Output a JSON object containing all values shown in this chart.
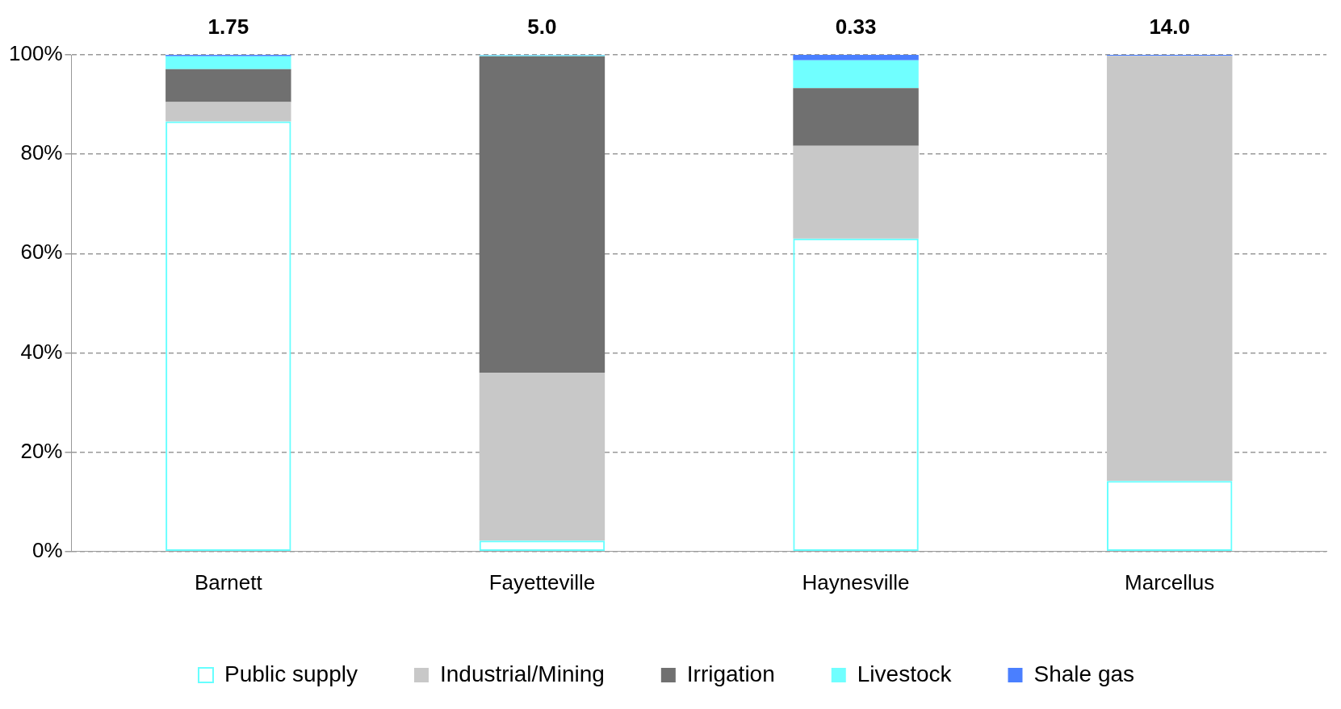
{
  "chart_data": {
    "type": "bar",
    "stacked": true,
    "categories": [
      "Barnett",
      "Fayetteville",
      "Haynesville",
      "Marcellus"
    ],
    "series": [
      {
        "name": "Public supply",
        "color": "#66ffff",
        "values": [
          86.6,
          2.2,
          63.0,
          14.2
        ]
      },
      {
        "name": "Industrial/Mining",
        "color": "#c8c8c8",
        "values": [
          3.9,
          33.8,
          18.7,
          85.6
        ]
      },
      {
        "name": "Irrigation",
        "color": "#707070",
        "values": [
          6.6,
          63.7,
          11.6,
          0
        ]
      },
      {
        "name": "Livestock",
        "color": "#70ffff",
        "values": [
          2.6,
          0.2,
          5.6,
          0
        ]
      },
      {
        "name": "Shale gas",
        "color": "#4a7fff",
        "values": [
          0.3,
          0.1,
          1.1,
          0.2
        ]
      }
    ],
    "ylim": [
      0,
      100
    ],
    "yticks": [
      {
        "value": 0,
        "label": "0%"
      },
      {
        "value": 20,
        "label": "20%"
      },
      {
        "value": 40,
        "label": "40%"
      },
      {
        "value": 60,
        "label": "60%"
      },
      {
        "value": 80,
        "label": "80%"
      },
      {
        "value": 100,
        "label": "100%"
      }
    ],
    "grid": "y",
    "legend": "bottom",
    "annotations": [
      {
        "text": "1.75",
        "x": "Barnett",
        "y": 100
      },
      {
        "text": "5.0",
        "x": "Fayetteville",
        "y": 100
      },
      {
        "text": "0.33",
        "x": "Haynesville",
        "y": 100
      },
      {
        "text": "14.0",
        "x": "Marcellus",
        "y": 100
      }
    ]
  }
}
